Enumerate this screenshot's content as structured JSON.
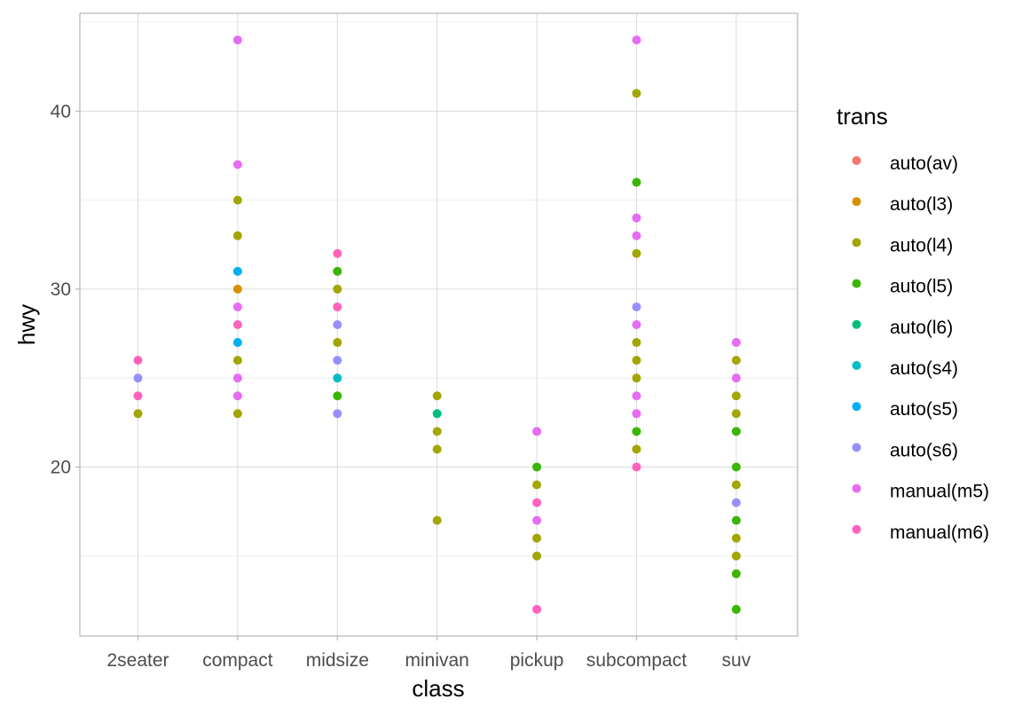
{
  "chart_data": {
    "type": "scatter",
    "xlabel": "class",
    "ylabel": "hwy",
    "categories": [
      "2seater",
      "compact",
      "midsize",
      "minivan",
      "pickup",
      "subcompact",
      "suv"
    ],
    "ylim": [
      10.5,
      45.5
    ],
    "y_major_ticks": [
      20,
      30,
      40
    ],
    "y_minor_ticks": [
      15,
      25,
      35,
      45
    ],
    "grid": true,
    "legend": {
      "title": "trans",
      "position": "right",
      "entries": [
        {
          "label": "auto(av)",
          "color": "#F8766D"
        },
        {
          "label": "auto(l3)",
          "color": "#D89000"
        },
        {
          "label": "auto(l4)",
          "color": "#A3A500"
        },
        {
          "label": "auto(l5)",
          "color": "#39B600"
        },
        {
          "label": "auto(l6)",
          "color": "#00BF7D"
        },
        {
          "label": "auto(s4)",
          "color": "#00BFC4"
        },
        {
          "label": "auto(s5)",
          "color": "#00B0F6"
        },
        {
          "label": "auto(s6)",
          "color": "#9590FF"
        },
        {
          "label": "manual(m5)",
          "color": "#E76BF3"
        },
        {
          "label": "manual(m6)",
          "color": "#FF62BC"
        }
      ]
    },
    "series": [
      {
        "name": "auto(l4)",
        "x": [
          "2seater",
          "compact",
          "compact",
          "compact",
          "compact",
          "midsize",
          "midsize",
          "minivan",
          "minivan",
          "minivan",
          "minivan",
          "pickup",
          "pickup",
          "pickup",
          "subcompact",
          "subcompact",
          "subcompact",
          "subcompact",
          "subcompact",
          "subcompact",
          "suv",
          "suv",
          "suv",
          "suv",
          "suv",
          "suv"
        ],
        "y": [
          23,
          35,
          33,
          26,
          23,
          30,
          27,
          24,
          22,
          21,
          17,
          19,
          16,
          15,
          41,
          32,
          27,
          26,
          25,
          21,
          26,
          24,
          23,
          19,
          16,
          15
        ]
      },
      {
        "name": "auto(l3)",
        "x": [
          "compact"
        ],
        "y": [
          30
        ]
      },
      {
        "name": "auto(l5)",
        "x": [
          "midsize",
          "midsize",
          "pickup",
          "subcompact",
          "subcompact",
          "suv",
          "suv",
          "suv",
          "suv",
          "suv"
        ],
        "y": [
          31,
          24,
          20,
          36,
          22,
          22,
          20,
          17,
          14,
          12
        ]
      },
      {
        "name": "auto(l6)",
        "x": [
          "minivan"
        ],
        "y": [
          23
        ]
      },
      {
        "name": "auto(s4)",
        "x": [
          "midsize"
        ],
        "y": [
          25
        ]
      },
      {
        "name": "auto(s5)",
        "x": [
          "compact",
          "compact"
        ],
        "y": [
          31,
          27
        ]
      },
      {
        "name": "auto(s6)",
        "x": [
          "2seater",
          "midsize",
          "midsize",
          "midsize",
          "subcompact",
          "suv"
        ],
        "y": [
          25,
          28,
          26,
          23,
          29,
          18
        ]
      },
      {
        "name": "manual(m5)",
        "x": [
          "compact",
          "compact",
          "compact",
          "compact",
          "compact",
          "pickup",
          "pickup",
          "subcompact",
          "subcompact",
          "subcompact",
          "subcompact",
          "subcompact",
          "subcompact",
          "suv",
          "suv"
        ],
        "y": [
          44,
          37,
          29,
          25,
          24,
          22,
          17,
          44,
          34,
          33,
          28,
          24,
          23,
          27,
          25
        ]
      },
      {
        "name": "manual(m6)",
        "x": [
          "2seater",
          "2seater",
          "compact",
          "midsize",
          "midsize",
          "pickup",
          "pickup",
          "subcompact"
        ],
        "y": [
          26,
          24,
          28,
          32,
          29,
          18,
          12,
          20
        ]
      }
    ]
  }
}
